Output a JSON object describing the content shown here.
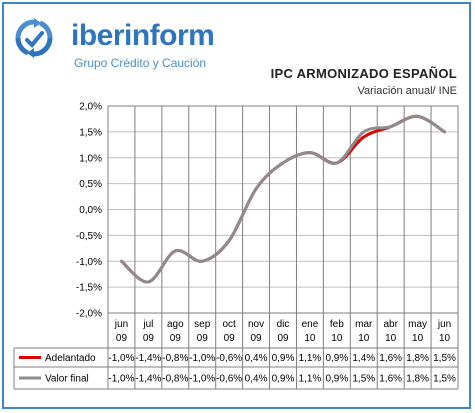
{
  "brand": {
    "name": "iberinform",
    "tagline": "Grupo Crédito y Caución",
    "logo_icon": "circular-arrows-logo-icon",
    "color": "#2f75bd"
  },
  "chart_data": {
    "type": "line",
    "title": "IPC ARMONIZADO ESPAÑOL",
    "subtitle": "Variación anual/ INE",
    "categories": [
      [
        "jun",
        "09"
      ],
      [
        "jul",
        "09"
      ],
      [
        "ago",
        "09"
      ],
      [
        "sep",
        "09"
      ],
      [
        "oct",
        "09"
      ],
      [
        "nov",
        "09"
      ],
      [
        "dic",
        "09"
      ],
      [
        "ene",
        "10"
      ],
      [
        "feb",
        "10"
      ],
      [
        "mar",
        "10"
      ],
      [
        "abr",
        "10"
      ],
      [
        "may",
        "10"
      ],
      [
        "jun",
        "10"
      ]
    ],
    "ylim": [
      -2.0,
      2.0
    ],
    "y_ticks": [
      "-2,0%",
      "-1,5%",
      "-1,0%",
      "-0,5%",
      "0,0%",
      "0,5%",
      "1,0%",
      "1,5%",
      "2,0%"
    ],
    "y_tick_values": [
      -2.0,
      -1.5,
      -1.0,
      -0.5,
      0.0,
      0.5,
      1.0,
      1.5,
      2.0
    ],
    "grid": "horizontal",
    "legend": "data-table",
    "series": [
      {
        "name": "Adelantado",
        "color": "#e00000",
        "values": [
          -1.0,
          -1.4,
          -0.8,
          -1.0,
          -0.6,
          0.4,
          0.9,
          1.1,
          0.9,
          1.4,
          1.6,
          1.8,
          1.5
        ],
        "labels": [
          "-1,0%",
          "-1,4%",
          "-0,8%",
          "-1,0%",
          "-0,6%",
          "0,4%",
          "0,9%",
          "1,1%",
          "0,9%",
          "1,4%",
          "1,6%",
          "1,8%",
          "1,5%"
        ]
      },
      {
        "name": "Valor final",
        "color": "#8c8c8c",
        "values": [
          -1.0,
          -1.4,
          -0.8,
          -1.0,
          -0.6,
          0.4,
          0.9,
          1.1,
          0.9,
          1.5,
          1.6,
          1.8,
          1.5
        ],
        "labels": [
          "-1,0%",
          "-1,4%",
          "-0,8%",
          "-1,0%",
          "-0,6%",
          "0,4%",
          "0,9%",
          "1,1%",
          "0,9%",
          "1,5%",
          "1,6%",
          "1,8%",
          "1,5%"
        ]
      }
    ]
  }
}
